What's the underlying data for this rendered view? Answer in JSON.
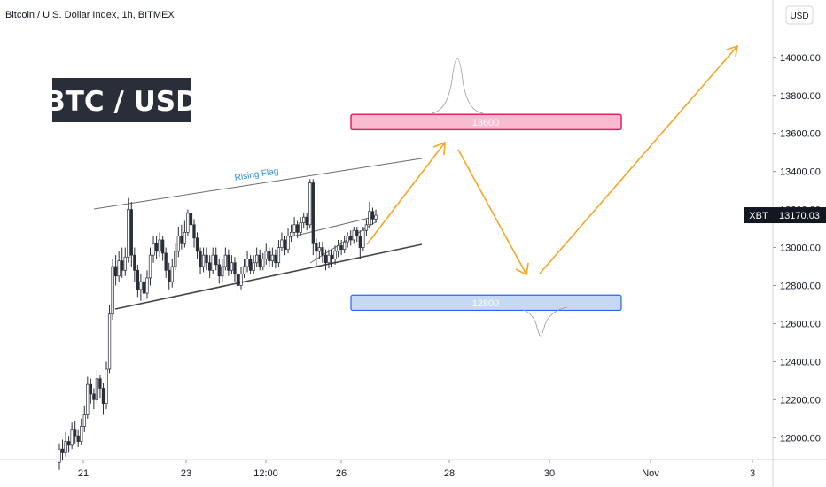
{
  "header": {
    "title": "Bitcoin / U.S. Dollar Index, 1h, BITMEX"
  },
  "currency_button": {
    "label": "USD"
  },
  "watermark": {
    "label": "BTC / USD"
  },
  "last_price": {
    "symbol": "XBT",
    "value": "13170.03",
    "price": 13170.03
  },
  "annotations": {
    "pattern_label": "Rising Flag",
    "resistance": {
      "label": "13600",
      "low": 13620,
      "high": 13700
    },
    "support": {
      "label": "12800",
      "low": 12670,
      "high": 12750
    }
  },
  "colors": {
    "candle": "#2a2e39",
    "pattern_line": "#555555",
    "path_arrow": "#f5a623",
    "resistance_fill": "#f8bbd0",
    "resistance_border": "#e91e63",
    "support_fill": "#c5d9f5",
    "support_border": "#2962ff",
    "badge": "#131722"
  },
  "chart_data": {
    "type": "candlestick",
    "title": "Bitcoin / U.S. Dollar Index, 1h, BITMEX",
    "y_ticks": [
      "12000.00",
      "12200.00",
      "12400.00",
      "12600.00",
      "12800.00",
      "13000.00",
      "13200.00",
      "13400.00",
      "13600.00",
      "13800.00",
      "14000.00"
    ],
    "x_ticks": [
      "21",
      "23",
      "12:00",
      "26",
      "28",
      "30",
      "Nov",
      "3"
    ],
    "ylim": [
      11880,
      14150
    ],
    "series_name": "",
    "candles": [
      [
        11870,
        11940,
        11830,
        11970
      ],
      [
        11940,
        11920,
        11880,
        11990
      ],
      [
        11920,
        11980,
        11900,
        12030
      ],
      [
        11980,
        11960,
        11920,
        12010
      ],
      [
        11960,
        12040,
        11940,
        12080
      ],
      [
        12040,
        12010,
        11970,
        12090
      ],
      [
        12010,
        11980,
        11950,
        12040
      ],
      [
        11980,
        12060,
        11960,
        12100
      ],
      [
        12060,
        12120,
        12030,
        12170
      ],
      [
        12120,
        12280,
        12100,
        12320
      ],
      [
        12280,
        12230,
        12180,
        12310
      ],
      [
        12230,
        12200,
        12150,
        12260
      ],
      [
        12200,
        12310,
        12180,
        12350
      ],
      [
        12310,
        12260,
        12210,
        12330
      ],
      [
        12260,
        12180,
        12120,
        12290
      ],
      [
        12180,
        12360,
        12150,
        12400
      ],
      [
        12360,
        12650,
        12340,
        12700
      ],
      [
        12650,
        12900,
        12620,
        12940
      ],
      [
        12900,
        12850,
        12800,
        12960
      ],
      [
        12850,
        12930,
        12820,
        12980
      ],
      [
        12930,
        12880,
        12840,
        13000
      ],
      [
        12880,
        12950,
        12850,
        13000
      ],
      [
        12950,
        13200,
        12920,
        13260
      ],
      [
        13200,
        12960,
        12900,
        13240
      ],
      [
        12960,
        12880,
        12820,
        13000
      ],
      [
        12880,
        12780,
        12740,
        12910
      ],
      [
        12780,
        12820,
        12720,
        12860
      ],
      [
        12820,
        12760,
        12710,
        12850
      ],
      [
        12760,
        12840,
        12730,
        12880
      ],
      [
        12840,
        12960,
        12800,
        13000
      ],
      [
        12960,
        13020,
        12920,
        13060
      ],
      [
        13020,
        12980,
        12940,
        13060
      ],
      [
        12980,
        13040,
        12950,
        13080
      ],
      [
        13040,
        12970,
        12930,
        13060
      ],
      [
        12970,
        12880,
        12840,
        13000
      ],
      [
        12880,
        12820,
        12780,
        12920
      ],
      [
        12820,
        12900,
        12790,
        12940
      ],
      [
        12900,
        12980,
        12880,
        13020
      ],
      [
        12980,
        13060,
        12950,
        13110
      ],
      [
        13060,
        13020,
        12990,
        13120
      ],
      [
        13020,
        13080,
        13000,
        13140
      ],
      [
        13080,
        13180,
        13060,
        13200
      ],
      [
        13180,
        13120,
        13080,
        13200
      ],
      [
        13120,
        13050,
        13000,
        13150
      ],
      [
        13050,
        12980,
        12940,
        13080
      ],
      [
        12980,
        12900,
        12860,
        13000
      ],
      [
        12900,
        12960,
        12870,
        13000
      ],
      [
        12960,
        12920,
        12880,
        13000
      ],
      [
        12920,
        12880,
        12840,
        12960
      ],
      [
        12880,
        12960,
        12860,
        13000
      ],
      [
        12960,
        12910,
        12880,
        13000
      ],
      [
        12910,
        12850,
        12810,
        12940
      ],
      [
        12850,
        12900,
        12820,
        12940
      ],
      [
        12900,
        12960,
        12880,
        13000
      ],
      [
        12960,
        12880,
        12850,
        12990
      ],
      [
        12880,
        12920,
        12860,
        12960
      ],
      [
        12920,
        12860,
        12820,
        12950
      ],
      [
        12860,
        12800,
        12730,
        12880
      ],
      [
        12800,
        12860,
        12780,
        12900
      ],
      [
        12860,
        12900,
        12840,
        12940
      ],
      [
        12900,
        12940,
        12870,
        12980
      ],
      [
        12940,
        12880,
        12860,
        12960
      ],
      [
        12880,
        12920,
        12860,
        12960
      ],
      [
        12920,
        12960,
        12900,
        13000
      ],
      [
        12960,
        12900,
        12880,
        12990
      ],
      [
        12900,
        12940,
        12880,
        12970
      ],
      [
        12940,
        12980,
        12910,
        13020
      ],
      [
        12980,
        12930,
        12900,
        13000
      ],
      [
        12930,
        12960,
        12900,
        13000
      ],
      [
        12960,
        12920,
        12890,
        12990
      ],
      [
        12920,
        13000,
        12900,
        13040
      ],
      [
        13000,
        13040,
        12980,
        13080
      ],
      [
        13040,
        12990,
        12960,
        13060
      ],
      [
        12990,
        13060,
        12970,
        13100
      ],
      [
        13060,
        13080,
        13030,
        13120
      ],
      [
        13080,
        13120,
        13060,
        13160
      ],
      [
        13120,
        13080,
        13050,
        13140
      ],
      [
        13080,
        13130,
        13060,
        13160
      ],
      [
        13130,
        13160,
        13100,
        13180
      ],
      [
        13160,
        13120,
        13090,
        13180
      ],
      [
        13120,
        13340,
        13100,
        13360
      ],
      [
        13340,
        13020,
        12960,
        13360
      ],
      [
        13020,
        12980,
        12900,
        13050
      ],
      [
        12980,
        13000,
        12940,
        13030
      ],
      [
        13000,
        12960,
        12920,
        13030
      ],
      [
        12960,
        12920,
        12880,
        12990
      ],
      [
        12920,
        12960,
        12890,
        12990
      ],
      [
        12960,
        12940,
        12900,
        12990
      ],
      [
        12940,
        12980,
        12910,
        13010
      ],
      [
        12980,
        13010,
        12950,
        13040
      ],
      [
        13010,
        12990,
        12960,
        13040
      ],
      [
        12990,
        13030,
        12970,
        13060
      ],
      [
        13030,
        13060,
        13000,
        13080
      ],
      [
        13060,
        13040,
        13010,
        13090
      ],
      [
        13040,
        13090,
        13020,
        13110
      ],
      [
        13090,
        13060,
        13030,
        13110
      ],
      [
        13060,
        13000,
        12940,
        13090
      ],
      [
        13000,
        13090,
        12980,
        13110
      ],
      [
        13090,
        13120,
        13060,
        13150
      ],
      [
        13120,
        13190,
        13100,
        13240
      ],
      [
        13190,
        13150,
        13120,
        13210
      ],
      [
        13150,
        13170,
        13130,
        13200
      ]
    ]
  }
}
